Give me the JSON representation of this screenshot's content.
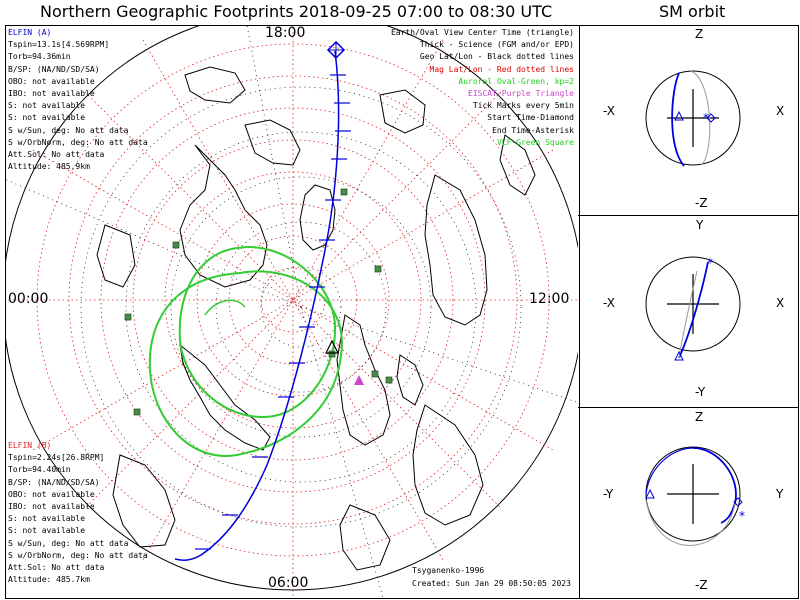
{
  "title": "Northern Geographic Footprints 2018-09-25 07:00 to 08:30 UTC",
  "orbit_title": "SM orbit",
  "time_labels": {
    "top": "18:00",
    "left": "00:00",
    "right": "12:00",
    "bottom": "06:00"
  },
  "sat_a": {
    "header": "ELFIN (A)",
    "color": "#0000cc",
    "lines": [
      "Tspin=13.1s[4.569RPM]",
      "Torb=94.36min",
      "B/SP: (NA/ND/SD/SA)",
      "OBO: not available",
      "IBO: not available",
      "S: not available",
      "S: not available",
      "S w/Sun, deg: No att data",
      "S w/OrbNorm, deg: No att data",
      "Att.Sol: No att data",
      "Altitude: 485.9km"
    ]
  },
  "sat_b": {
    "header": "ELFIN (B)",
    "color": "#dd2222",
    "lines": [
      "Tspin=2.24s[26.8RPM]",
      "Torb=94.40min",
      "B/SP: (NA/ND/SD/SA)",
      "OBO: not available",
      "IBO: not available",
      "S: not available",
      "S: not available",
      "S w/Sun, deg: No att data",
      "S w/OrbNorm, deg: No att data",
      "Att.Sol: No att data",
      "Altitude: 485.7km"
    ]
  },
  "legend": [
    {
      "text": "Earth/Oval View Center Time (triangle)",
      "color": "#000000"
    },
    {
      "text": "Thick - Science (FGM and/or EPD)",
      "color": "#000000"
    },
    {
      "text": "Geo Lat/Lon - Black dotted lines",
      "color": "#000000"
    },
    {
      "text": "Mag Lat/Lon - Red dotted lines",
      "color": "#dd0000"
    },
    {
      "text": "Auroral Oval-Green, kp=2",
      "color": "#22cc22"
    },
    {
      "text": "EISCAT-Purple Triangle",
      "color": "#cc44cc"
    },
    {
      "text": "Tick Marks every 5min",
      "color": "#000000"
    },
    {
      "text": "Start Time-Diamond",
      "color": "#000000"
    },
    {
      "text": "End Time-Asterisk",
      "color": "#000000"
    },
    {
      "text": "VLF-Green Square",
      "color": "#22cc22"
    }
  ],
  "credit_author": "Tsyganenko-1996",
  "credit_created": "Created: Sun Jan 29 08:50:05 2023",
  "panels": [
    {
      "top": "Z",
      "bottom": "-Z",
      "left": "-X",
      "right": "X"
    },
    {
      "top": "Y",
      "bottom": "-Y",
      "left": "-X",
      "right": "X"
    },
    {
      "top": "Z",
      "bottom": "-Z",
      "left": "-Y",
      "right": "Y"
    }
  ],
  "colors": {
    "track": "#0000dd",
    "mag_grid": "#dd2222",
    "oval": "#33cc33",
    "vlf": "#4a8a4a",
    "land": "#000000"
  },
  "icons": [
    "start-diamond-icon",
    "end-asterisk-icon",
    "view-center-triangle-icon",
    "eiscat-triangle-icon",
    "vlf-square-icon"
  ]
}
